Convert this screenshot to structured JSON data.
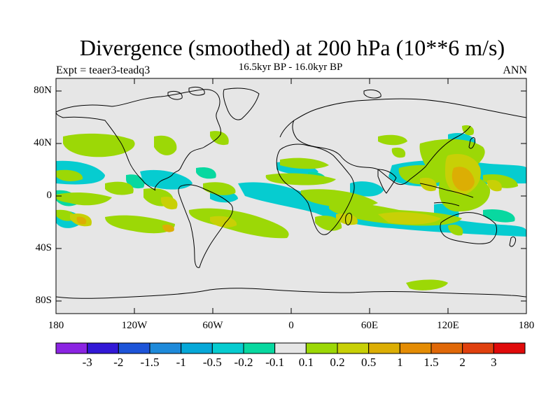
{
  "title": "Divergence (smoothed) at 200 hPa (10**6 m/s)",
  "subtitle": "16.5kyr BP - 16.0kyr BP",
  "left_label": "Expt = teaer3-teadq3",
  "right_label": "ANN",
  "lat_labels": [
    "80N",
    "40N",
    "0",
    "40S",
    "80S"
  ],
  "lon_labels": [
    "180",
    "120W",
    "60W",
    "0",
    "60E",
    "120E",
    "180"
  ],
  "colorbar": {
    "labels": [
      "-3",
      "-2",
      "-1.5",
      "-1",
      "-0.5",
      "-0.2",
      "-0.1",
      "0.1",
      "0.2",
      "0.5",
      "1",
      "1.5",
      "2",
      "3"
    ],
    "colors": [
      "#8B24E2",
      "#3218D6",
      "#1D54D8",
      "#1E8ADA",
      "#06A8D8",
      "#06CCD0",
      "#08D8A0",
      "#E6E6E6",
      "#9CD806",
      "#C8D006",
      "#DCAE04",
      "#E48C04",
      "#E06808",
      "#E0400E",
      "#E00A0A"
    ]
  },
  "colors": {
    "land_ocean_bg": "#E6E6E6",
    "coast": "#000000"
  }
}
